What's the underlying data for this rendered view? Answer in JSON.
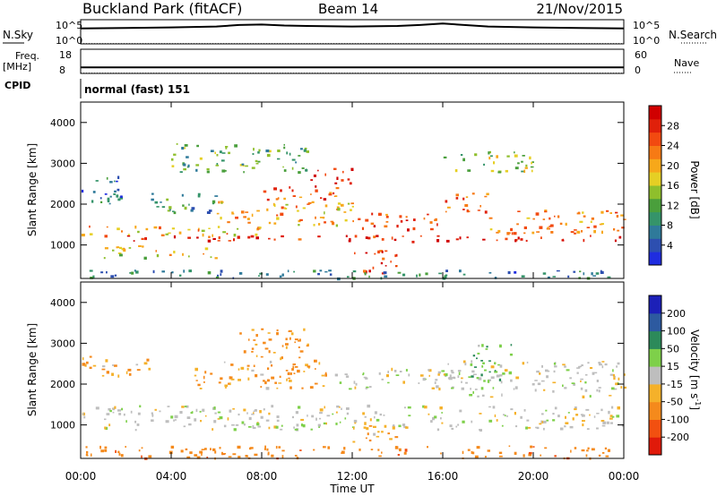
{
  "header": {
    "station": "Buckland Park (fitACF)",
    "beam": "Beam 14",
    "date": "21/Nov/2015"
  },
  "strip_labels": {
    "nsky": "N.Sky",
    "nsky_ticks": [
      "10^5",
      "10^0"
    ],
    "nsearch": "N.Search",
    "nsearch_ticks": [
      "10^5",
      "10^0"
    ],
    "freq_top": "Freq.",
    "freq_unit": "[MHz]",
    "freq_ticks": [
      "18",
      "8"
    ],
    "nave": "Nave",
    "nave_ticks": [
      "60",
      "0"
    ],
    "cpid": "CPID",
    "cpid_value": "normal (fast) 151"
  },
  "chart_data": [
    {
      "type": "line",
      "name": "noise",
      "x": [
        "00:00",
        "02:00",
        "04:00",
        "06:00",
        "07:00",
        "08:00",
        "09:00",
        "10:00",
        "12:00",
        "14:00",
        "15:00",
        "16:00",
        "18:00",
        "20:00",
        "22:00",
        "24:00"
      ],
      "series": [
        {
          "values": [
            3.2,
            3.3,
            3.4,
            3.6,
            3.9,
            4.0,
            3.8,
            3.7,
            3.6,
            3.7,
            3.9,
            4.2,
            3.6,
            3.4,
            3.3,
            3.2
          ]
        },
        {
          "values": [
            0.05,
            0.05,
            0.05,
            0.05,
            0.05,
            0.05,
            0.05,
            0.05,
            0.05,
            0.05,
            0.05,
            0.05,
            0.05,
            0.05,
            0.05,
            0.05
          ]
        }
      ],
      "ylim": [
        0,
        5
      ]
    },
    {
      "type": "line",
      "name": "frequency",
      "series": [
        {
          "values": [
            10.5,
            10.5
          ]
        },
        {
          "values": [
            8.1,
            8.1
          ]
        }
      ],
      "ylim": [
        8,
        18
      ]
    },
    {
      "type": "heatmap",
      "name": "power",
      "xlabel": "",
      "ylabel": "Slant Range [km]",
      "yticks": [
        "1000",
        "2000",
        "3000",
        "4000"
      ],
      "ylim": [
        180,
        4500
      ],
      "xlim": [
        0,
        24
      ],
      "colorbar": {
        "label": "Power [dB]",
        "ticks": [
          "4",
          "8",
          "12",
          "16",
          "20",
          "24",
          "28"
        ],
        "colors": [
          "#1f2de0",
          "#2d4fb0",
          "#2f7a9a",
          "#35946a",
          "#4a9f3c",
          "#8fbf2c",
          "#e6cf24",
          "#f7a81a",
          "#f77a14",
          "#f24a10",
          "#e0200a",
          "#d00000"
        ]
      },
      "bands": [
        {
          "x0": 0,
          "x1": 24,
          "r0": 1100,
          "r1": 1250,
          "db": 28
        },
        {
          "x0": 0,
          "x1": 8,
          "r0": 1250,
          "r1": 1500,
          "db": 20
        },
        {
          "x0": 6,
          "x1": 12,
          "r0": 1500,
          "r1": 2100,
          "db": 20
        },
        {
          "x0": 8,
          "x1": 11.5,
          "r0": 2100,
          "r1": 2500,
          "db": 25
        },
        {
          "x0": 10,
          "x1": 12,
          "r0": 2500,
          "r1": 2900,
          "db": 27
        },
        {
          "x0": 12,
          "x1": 16,
          "r0": 1400,
          "r1": 1800,
          "db": 26
        },
        {
          "x0": 16,
          "x1": 18,
          "r0": 1800,
          "r1": 2300,
          "db": 24
        },
        {
          "x0": 18,
          "x1": 24,
          "r0": 1300,
          "r1": 1900,
          "db": 22
        },
        {
          "x0": 1,
          "x1": 6,
          "r0": 700,
          "r1": 1000,
          "db": 18
        },
        {
          "x0": 12,
          "x1": 14,
          "r0": 300,
          "r1": 900,
          "db": 27
        },
        {
          "x0": 3,
          "x1": 6,
          "r0": 1800,
          "r1": 2300,
          "db": 10
        },
        {
          "x0": 0,
          "x1": 2,
          "r0": 2000,
          "r1": 2700,
          "db": 7
        },
        {
          "x0": 4,
          "x1": 10,
          "r0": 2800,
          "r1": 3500,
          "db": 12
        },
        {
          "x0": 16,
          "x1": 20,
          "r0": 2800,
          "r1": 3300,
          "db": 14
        },
        {
          "x0": 0,
          "x1": 24,
          "r0": 200,
          "r1": 400,
          "db": 8
        }
      ]
    },
    {
      "type": "heatmap",
      "name": "velocity",
      "xlabel": "Time UT",
      "ylabel": "Slant Range [km]",
      "xticks": [
        "00:00",
        "04:00",
        "08:00",
        "12:00",
        "16:00",
        "20:00",
        "00:00"
      ],
      "yticks": [
        "1000",
        "2000",
        "3000",
        "4000"
      ],
      "ylim": [
        180,
        4500
      ],
      "xlim": [
        0,
        24
      ],
      "colorbar": {
        "label": "Velocity [m s",
        "label_sup": "-1",
        "label_end": "]",
        "ticks": [
          "200",
          "100",
          "50",
          "15",
          "-15",
          "-50",
          "-100",
          "-200"
        ],
        "colors": [
          "#1c20b8",
          "#2d5aa0",
          "#2c8a5a",
          "#7ed04a",
          "#bebebe",
          "#f5b12a",
          "#f58a1c",
          "#f25010",
          "#e01a0a"
        ]
      },
      "bands": [
        {
          "x0": 0,
          "x1": 24,
          "r0": 900,
          "r1": 1500,
          "v": 0
        },
        {
          "x0": 5,
          "x1": 11,
          "r0": 1900,
          "r1": 2600,
          "v": -30
        },
        {
          "x0": 7,
          "x1": 10,
          "r0": 2600,
          "r1": 3400,
          "v": -40
        },
        {
          "x0": 11,
          "x1": 16,
          "r0": 1900,
          "r1": 2400,
          "v": 0
        },
        {
          "x0": 16,
          "x1": 24,
          "r0": 1700,
          "r1": 2600,
          "v": 0
        },
        {
          "x0": 17,
          "x1": 19,
          "r0": 2100,
          "r1": 3000,
          "v": 30
        },
        {
          "x0": 0,
          "x1": 24,
          "r0": 200,
          "r1": 500,
          "v": -60
        },
        {
          "x0": 0,
          "x1": 3,
          "r0": 2200,
          "r1": 2700,
          "v": -25
        },
        {
          "x0": 12,
          "x1": 14,
          "r0": 600,
          "r1": 1100,
          "v": -30
        }
      ]
    }
  ]
}
